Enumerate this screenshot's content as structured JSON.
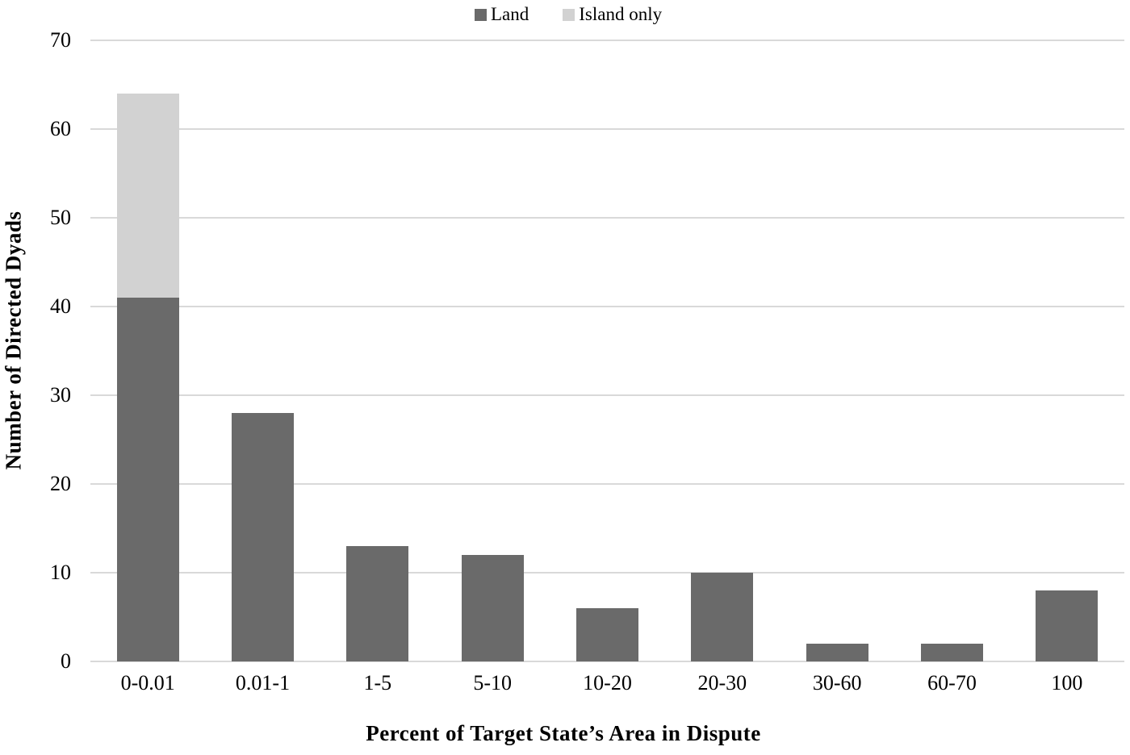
{
  "chart_data": {
    "type": "bar",
    "stacked": true,
    "categories": [
      "0-0.01",
      "0.01-1",
      "1-5",
      "5-10",
      "10-20",
      "20-30",
      "30-60",
      "60-70",
      "100"
    ],
    "series": [
      {
        "name": "Land",
        "color": "#6a6a6a",
        "values": [
          41,
          28,
          13,
          12,
          6,
          10,
          2,
          2,
          8
        ]
      },
      {
        "name": "Island only",
        "color": "#d2d2d2",
        "values": [
          23,
          0,
          0,
          0,
          0,
          0,
          0,
          0,
          0
        ]
      }
    ],
    "xlabel": "Percent of Target State’s Area in Dispute",
    "ylabel": "Number of Directed Dyads",
    "ylim": [
      0,
      70
    ],
    "yticks": [
      0,
      10,
      20,
      30,
      40,
      50,
      60,
      70
    ],
    "grid": true,
    "gridline_color": "#d9d9d9",
    "legend_position": "top-center",
    "background": "#ffffff",
    "text_color": "#000000"
  },
  "legend": {
    "items": [
      {
        "label": "Land",
        "color": "#6a6a6a"
      },
      {
        "label": "Island only",
        "color": "#d2d2d2"
      }
    ]
  }
}
